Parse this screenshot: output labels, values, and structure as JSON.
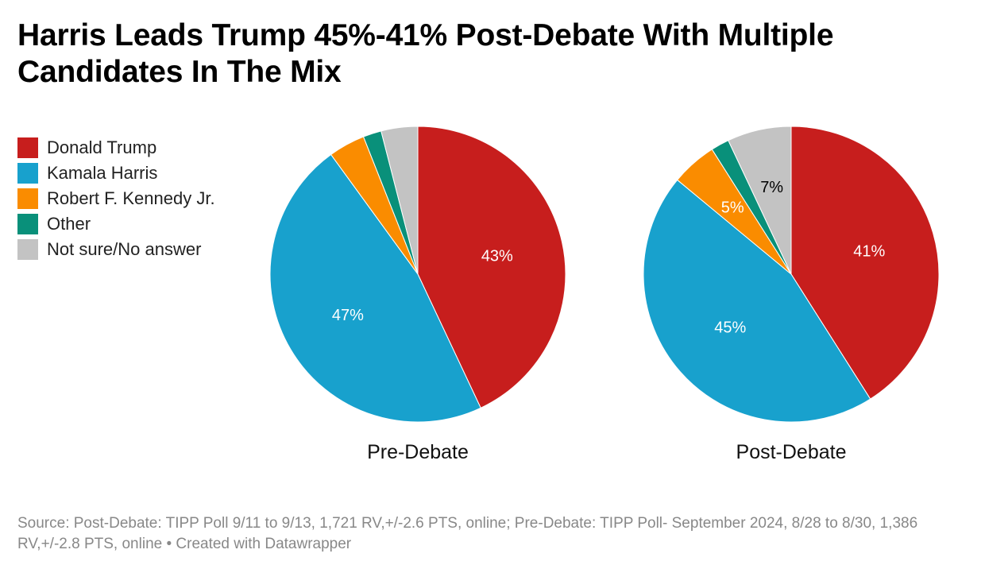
{
  "title": "Harris Leads Trump 45%-41% Post-Debate With Multiple Candidates In The Mix",
  "legend": [
    {
      "label": "Donald Trump",
      "color": "#c71e1d"
    },
    {
      "label": "Kamala Harris",
      "color": "#18a1cd"
    },
    {
      "label": "Robert F. Kennedy Jr.",
      "color": "#fa8c00"
    },
    {
      "label": "Other",
      "color": "#09907a"
    },
    {
      "label": "Not sure/No answer",
      "color": "#c3c3c3"
    }
  ],
  "chart_data": [
    {
      "type": "pie",
      "title": "Pre-Debate",
      "slices": [
        {
          "label": "Donald Trump",
          "value": 43,
          "display": "43%",
          "color": "#c71e1d",
          "text_color": "#ffffff"
        },
        {
          "label": "Kamala Harris",
          "value": 47,
          "display": "47%",
          "color": "#18a1cd",
          "text_color": "#ffffff"
        },
        {
          "label": "Robert F. Kennedy Jr.",
          "value": 4,
          "display": "",
          "color": "#fa8c00",
          "text_color": "#000000"
        },
        {
          "label": "Other",
          "value": 2,
          "display": "",
          "color": "#09907a",
          "text_color": "#ffffff"
        },
        {
          "label": "Not sure/No answer",
          "value": 4,
          "display": "",
          "color": "#c3c3c3",
          "text_color": "#000000"
        }
      ]
    },
    {
      "type": "pie",
      "title": "Post-Debate",
      "slices": [
        {
          "label": "Donald Trump",
          "value": 41,
          "display": "41%",
          "color": "#c71e1d",
          "text_color": "#ffffff"
        },
        {
          "label": "Kamala Harris",
          "value": 45,
          "display": "45%",
          "color": "#18a1cd",
          "text_color": "#ffffff"
        },
        {
          "label": "Robert F. Kennedy Jr.",
          "value": 5,
          "display": "5%",
          "color": "#fa8c00",
          "text_color": "#ffffff"
        },
        {
          "label": "Other",
          "value": 2,
          "display": "",
          "color": "#09907a",
          "text_color": "#ffffff"
        },
        {
          "label": "Not sure/No answer",
          "value": 7,
          "display": "7%",
          "color": "#c3c3c3",
          "text_color": "#000000"
        }
      ]
    }
  ],
  "source": "Source: Post-Debate: TIPP Poll 9/11 to 9/13, 1,721 RV,+/-2.6 PTS, online; Pre-Debate: TIPP Poll- September 2024, 8/28 to 8/30, 1,386 RV,+/-2.8 PTS, online • Created with Datawrapper"
}
